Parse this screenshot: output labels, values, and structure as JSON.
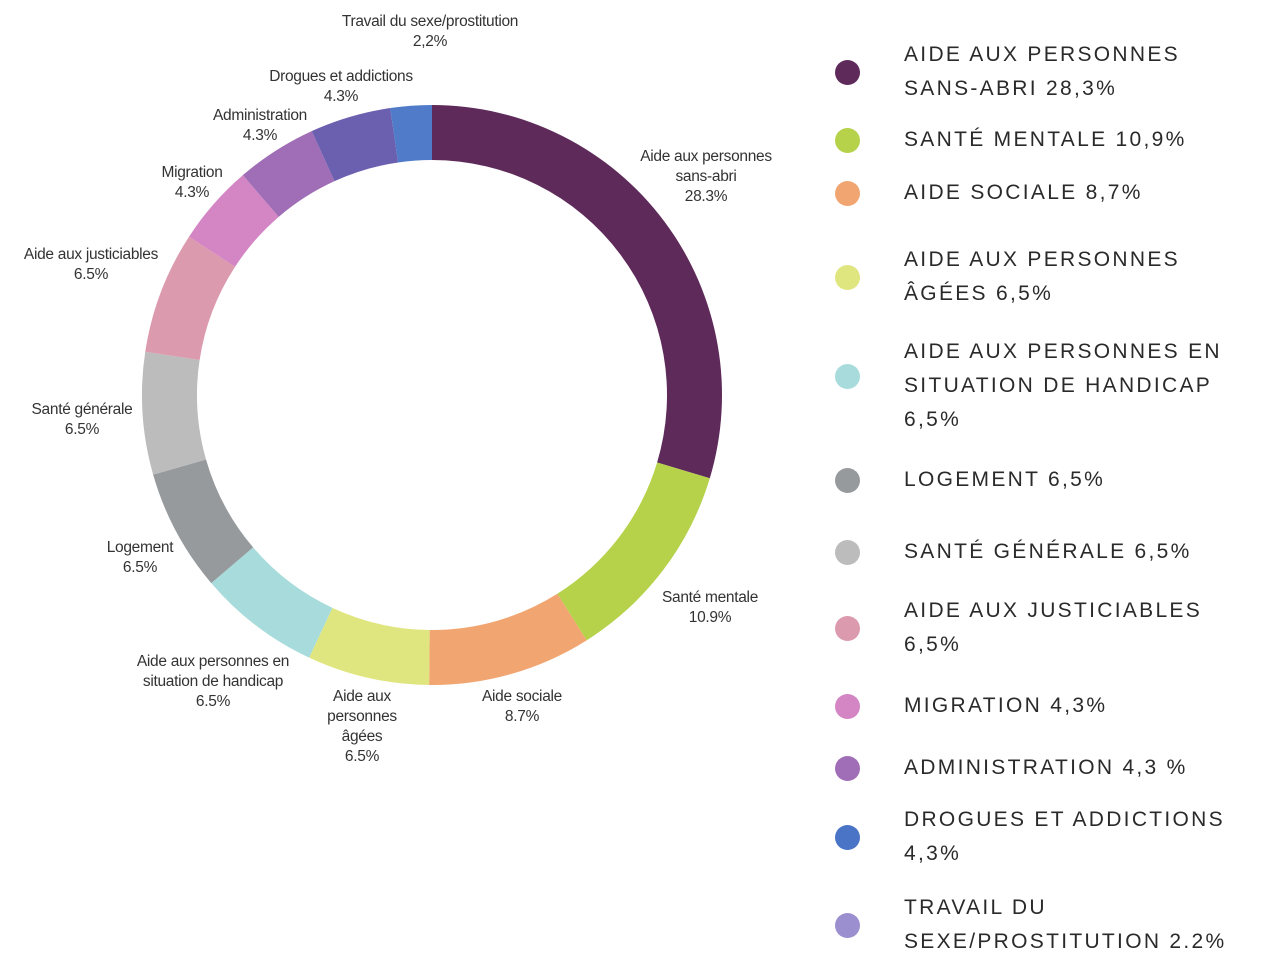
{
  "chart_data": {
    "type": "donut",
    "categories": [
      "Aide aux personnes sans-abri",
      "Santé mentale",
      "Aide sociale",
      "Aide aux personnes âgées",
      "Aide aux personnes en situation de handicap",
      "Logement",
      "Santé générale",
      "Aide aux justiciables",
      "Migration",
      "Administration",
      "Drogues et addictions",
      "Travail du sexe/prostitution"
    ],
    "values": [
      28.3,
      10.9,
      8.7,
      6.5,
      6.5,
      6.5,
      6.5,
      6.5,
      4.3,
      4.3,
      4.3,
      2.2
    ],
    "value_labels": [
      "28.3%",
      "10.9%",
      "8.7%",
      "6.5%",
      "6.5%",
      "6.5%",
      "6.5%",
      "6.5%",
      "4.3%",
      "4.3%",
      "4.3%",
      "2,2%"
    ],
    "colors": [
      "#5e2a5a",
      "#b5d24a",
      "#f1a571",
      "#e0e67f",
      "#a8dcdc",
      "#969a9d",
      "#bcbcbd",
      "#dc9aae",
      "#d385c4",
      "#a06eb6",
      "#6b5fb0",
      "#4f7bc8"
    ],
    "legend_labels": [
      "AIDE AUX PERSONNES SANS-ABRI 28,3%",
      "SANTÉ MENTALE 10,9%",
      "AIDE SOCIALE 8,7%",
      "AIDE AUX PERSONNES ÂGÉES 6,5%",
      "AIDE AUX PERSONNES EN SITUATION DE HANDICAP 6,5%",
      "LOGEMENT 6,5%",
      "SANTÉ GÉNÉRALE 6,5%",
      "AIDE AUX JUSTICIABLES 6,5%",
      "MIGRATION 4,3%",
      "ADMINISTRATION 4,3 %",
      "DROGUES ET ADDICTIONS 4,3%",
      "TRAVAIL DU SEXE/PROSTITUTION 2.2%"
    ],
    "legend_colors": [
      "#5e2a5a",
      "#b5d24a",
      "#f1a571",
      "#e0e67f",
      "#a8dcdc",
      "#969a9d",
      "#bcbcbd",
      "#dc9aae",
      "#d385c4",
      "#a06eb6",
      "#4a74c6",
      "#9b8fcf"
    ],
    "legend": "right"
  }
}
